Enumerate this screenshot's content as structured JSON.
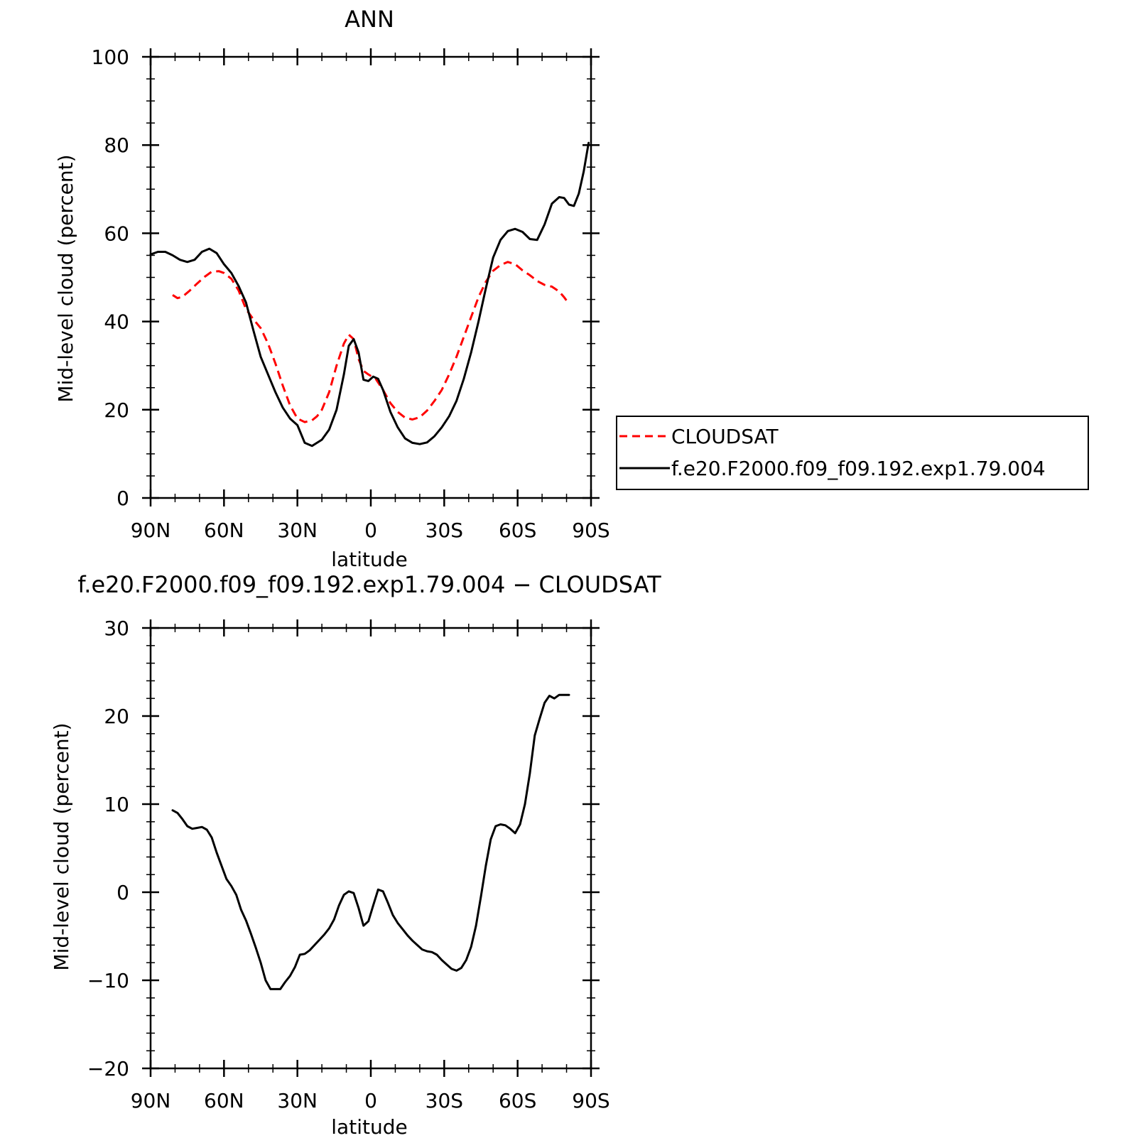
{
  "chart_data": [
    {
      "type": "line",
      "title": "ANN",
      "xlabel": "latitude",
      "ylabel": "Mid-level cloud (percent)",
      "xlim": [
        90,
        -90
      ],
      "ylim": [
        0,
        100
      ],
      "xticks": [
        90,
        60,
        30,
        0,
        -30,
        -60,
        -90
      ],
      "xtick_labels": [
        "90N",
        "60N",
        "30N",
        "0",
        "30S",
        "60S",
        "90S"
      ],
      "yticks": [
        0,
        20,
        40,
        60,
        80,
        100
      ],
      "ytick_labels": [
        "0",
        "20",
        "40",
        "60",
        "80",
        "100"
      ],
      "legend_position": "right",
      "series": [
        {
          "name": "CLOUDSAT",
          "color": "#ff0000",
          "dash": "dashed",
          "x": [
            81,
            79,
            77,
            74,
            71,
            68,
            65,
            62,
            60,
            57,
            54,
            51,
            48,
            45,
            42,
            39,
            36,
            33,
            30,
            27,
            24,
            22,
            20,
            17,
            14,
            11,
            9,
            7,
            5,
            3,
            1,
            -2,
            -5,
            -8,
            -11,
            -14,
            -17,
            -20,
            -23,
            -26,
            -29,
            -32,
            -35,
            -38,
            -41,
            -44,
            -47,
            -50,
            -53,
            -56,
            -59,
            -62,
            -65,
            -68,
            -71,
            -74,
            -77,
            -79,
            -81
          ],
          "y": [
            46,
            45.3,
            45.6,
            47,
            48.6,
            50.1,
            51.3,
            51.4,
            51,
            49.7,
            47,
            42.8,
            40.5,
            38.5,
            35,
            30.5,
            25.5,
            21,
            18,
            17.2,
            17.6,
            18.5,
            20,
            24,
            30,
            35,
            37,
            36,
            31.5,
            28.8,
            28,
            27,
            24.5,
            21.5,
            19.5,
            18.2,
            17.8,
            18.3,
            19.8,
            22,
            24.5,
            28,
            32,
            36.5,
            41,
            45.5,
            49,
            51.5,
            52.8,
            53.5,
            53,
            51.6,
            50.5,
            49.2,
            48.3,
            47.9,
            46.8,
            45.5,
            44
          ]
        },
        {
          "name": "f.e20.F2000.f09_f09.192.exp1.79.004",
          "color": "#000000",
          "dash": "solid",
          "x": [
            90,
            87,
            84,
            81,
            78,
            75,
            72,
            69,
            66,
            63,
            60,
            57,
            54,
            51,
            48,
            45,
            42,
            39,
            36,
            33,
            30,
            27,
            24,
            22,
            20,
            17,
            14,
            11,
            9,
            7,
            5,
            3,
            1,
            -1,
            -3,
            -5,
            -8,
            -11,
            -14,
            -17,
            -20,
            -23,
            -26,
            -29,
            -32,
            -35,
            -38,
            -41,
            -44,
            -47,
            -50,
            -53,
            -56,
            -59,
            -62,
            -65,
            -68,
            -71,
            -74,
            -77,
            -79,
            -81,
            -83,
            -85,
            -87,
            -89
          ],
          "y": [
            55.2,
            55.8,
            55.8,
            55,
            54,
            53.5,
            54,
            55.8,
            56.5,
            55.5,
            53,
            51,
            48,
            44.3,
            38,
            32,
            28,
            24,
            20.5,
            18,
            16.5,
            12.5,
            11.8,
            12.5,
            13.2,
            15.5,
            20,
            28,
            34.5,
            36,
            33,
            26.8,
            26.5,
            27.5,
            27,
            24.5,
            19.5,
            16,
            13.5,
            12.5,
            12.2,
            12.6,
            14,
            16,
            18.5,
            22,
            27,
            33,
            40,
            47.5,
            54.5,
            58.5,
            60.5,
            61,
            60.3,
            58.7,
            58.5,
            62,
            66.7,
            68.2,
            68,
            66.5,
            66.2,
            69,
            74,
            80.5
          ]
        }
      ]
    },
    {
      "type": "line",
      "title": "f.e20.F2000.f09_f09.192.exp1.79.004 − CLOUDSAT",
      "xlabel": "latitude",
      "ylabel": "Mid-level cloud (percent)",
      "xlim": [
        90,
        -90
      ],
      "ylim": [
        -20,
        30
      ],
      "xticks": [
        90,
        60,
        30,
        0,
        -30,
        -60,
        -90
      ],
      "xtick_labels": [
        "90N",
        "60N",
        "30N",
        "0",
        "30S",
        "60S",
        "90S"
      ],
      "yticks": [
        -20,
        -10,
        0,
        10,
        20,
        30
      ],
      "ytick_labels": [
        "−20",
        "−10",
        "0",
        "10",
        "20",
        "30"
      ],
      "series": [
        {
          "color": "#000000",
          "dash": "solid",
          "x": [
            81,
            79,
            77,
            75,
            73,
            71,
            69,
            67,
            65,
            63,
            61,
            59,
            57,
            55,
            53,
            51,
            49,
            47,
            45,
            43,
            41,
            39,
            37,
            35,
            33,
            31,
            29,
            27,
            25,
            23,
            21,
            19,
            17,
            15,
            13,
            11,
            9,
            7,
            5,
            3,
            1,
            -1,
            -3,
            -5,
            -7,
            -9,
            -11,
            -13,
            -15,
            -17,
            -19,
            -21,
            -23,
            -25,
            -27,
            -29,
            -31,
            -33,
            -35,
            -37,
            -39,
            -41,
            -43,
            -45,
            -47,
            -49,
            -51,
            -53,
            -55,
            -57,
            -59,
            -61,
            -63,
            -65,
            -67,
            -69,
            -71,
            -73,
            -75,
            -77,
            -79,
            -81
          ],
          "y": [
            9.3,
            9,
            8.3,
            7.5,
            7.2,
            7.3,
            7.4,
            7.1,
            6.2,
            4.5,
            3,
            1.5,
            0.7,
            -0.3,
            -2,
            -3.2,
            -4.7,
            -6.3,
            -8,
            -10,
            -11,
            -11,
            -11,
            -10.2,
            -9.5,
            -8.5,
            -7.1,
            -7,
            -6.6,
            -6,
            -5.4,
            -4.8,
            -4.1,
            -3.1,
            -1.5,
            -0.3,
            0.1,
            -0.1,
            -1.8,
            -3.8,
            -3.3,
            -1.5,
            0.3,
            0.1,
            -1.2,
            -2.6,
            -3.5,
            -4.2,
            -4.9,
            -5.5,
            -6,
            -6.5,
            -6.7,
            -6.8,
            -7.1,
            -7.7,
            -8.2,
            -8.7,
            -8.9,
            -8.6,
            -7.7,
            -6.2,
            -3.8,
            -0.5,
            3,
            6,
            7.5,
            7.7,
            7.6,
            7.2,
            6.7,
            7.7,
            10,
            13.5,
            17.8,
            19.7,
            21.5,
            22.3,
            22,
            22.4,
            22.4,
            22.4
          ]
        }
      ]
    }
  ],
  "legend": {
    "items": [
      {
        "label": "CLOUDSAT",
        "color": "#ff0000",
        "dash": "dashed"
      },
      {
        "label": "f.e20.F2000.f09_f09.192.exp1.79.004",
        "color": "#000000",
        "dash": "solid"
      }
    ]
  }
}
